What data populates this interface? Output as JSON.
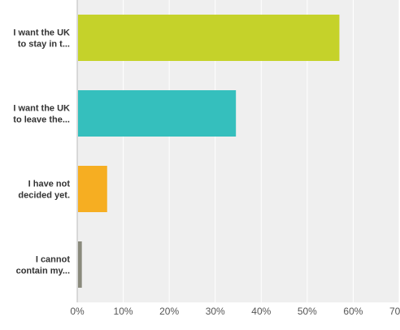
{
  "chart_data": {
    "type": "bar",
    "orientation": "horizontal",
    "categories": [
      [
        "I want the UK",
        "to stay in t..."
      ],
      [
        "I want the UK",
        "to leave the..."
      ],
      [
        "I have not",
        "decided yet."
      ],
      [
        "I cannot",
        "contain my..."
      ]
    ],
    "values": [
      57,
      34.5,
      6.5,
      1
    ],
    "colors": [
      "#c5d22a",
      "#35bfbd",
      "#f6ae22",
      "#8a8a7c"
    ],
    "xlim": [
      0,
      70
    ],
    "xticks": [
      0,
      10,
      20,
      30,
      40,
      50,
      60,
      70
    ],
    "tick_format": "%",
    "grid": true,
    "plot_background": "#efefef"
  }
}
